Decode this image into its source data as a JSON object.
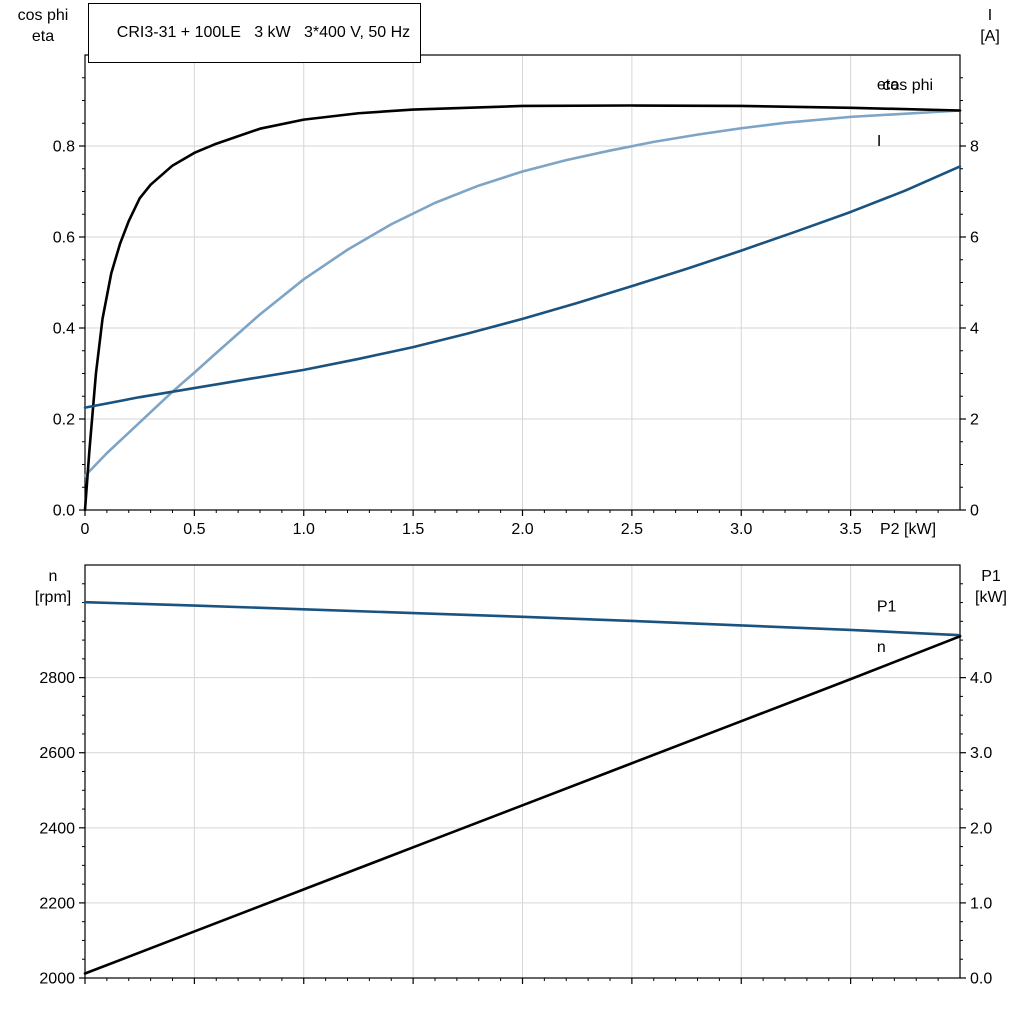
{
  "title": "CRI3-31 + 100LE   3 kW   3*400 V, 50 Hz",
  "colors": {
    "black": "#000000",
    "light_blue": "#7ea4c6",
    "dark_blue": "#1a5380",
    "grid": "#d6d6d6",
    "axis": "#000000"
  },
  "chart_data": [
    {
      "id": "top",
      "type": "line",
      "title": "CRI3-31 + 100LE   3 kW   3*400 V, 50 Hz",
      "x_axis": {
        "label": "P2 [kW]",
        "min": 0,
        "max": 4.0,
        "minor_step": 0.1,
        "major_ticks": [
          0,
          0.5,
          1.0,
          1.5,
          2.0,
          2.5,
          3.0,
          3.5
        ],
        "tick_labels": [
          "0",
          "0.5",
          "1.0",
          "1.5",
          "2.0",
          "2.5",
          "3.0",
          "3.5"
        ]
      },
      "y_left": {
        "label_lines": [
          "cos phi",
          "eta"
        ],
        "min": 0,
        "max": 1.0,
        "minor_step": 0.05,
        "major_ticks": [
          0.0,
          0.2,
          0.4,
          0.6,
          0.8
        ],
        "tick_labels": [
          "0.0",
          "0.2",
          "0.4",
          "0.6",
          "0.8"
        ]
      },
      "y_right": {
        "label_lines": [
          "I",
          "[A]"
        ],
        "min": 0,
        "max": 10,
        "minor_step": 0.5,
        "major_ticks": [
          0,
          2,
          4,
          6,
          8
        ],
        "tick_labels": [
          "0",
          "2",
          "4",
          "6",
          "8"
        ]
      },
      "grid": true,
      "series": [
        {
          "name": "cos phi",
          "slug": "cos-phi",
          "axis": "left",
          "color_key": "light_blue",
          "label_at": [
            3.645,
            0.923
          ],
          "x": [
            0,
            0.1,
            0.2,
            0.3,
            0.4,
            0.5,
            0.6,
            0.8,
            1.0,
            1.2,
            1.4,
            1.6,
            1.8,
            2.0,
            2.2,
            2.4,
            2.6,
            2.8,
            3.0,
            3.2,
            3.5,
            4.0
          ],
          "y": [
            0.075,
            0.125,
            0.17,
            0.215,
            0.26,
            0.302,
            0.345,
            0.43,
            0.507,
            0.572,
            0.628,
            0.675,
            0.713,
            0.744,
            0.769,
            0.79,
            0.809,
            0.825,
            0.839,
            0.851,
            0.864,
            0.878
          ]
        },
        {
          "name": "eta",
          "slug": "eta",
          "axis": "left",
          "color_key": "black",
          "label_at": [
            3.62,
            0.924
          ],
          "x": [
            0,
            0.02,
            0.05,
            0.08,
            0.12,
            0.16,
            0.2,
            0.25,
            0.3,
            0.4,
            0.5,
            0.6,
            0.8,
            1.0,
            1.25,
            1.5,
            2.0,
            2.5,
            3.0,
            3.5,
            4.0
          ],
          "y": [
            0,
            0.13,
            0.3,
            0.42,
            0.52,
            0.585,
            0.635,
            0.685,
            0.715,
            0.757,
            0.785,
            0.805,
            0.838,
            0.858,
            0.872,
            0.88,
            0.888,
            0.889,
            0.888,
            0.884,
            0.878
          ]
        },
        {
          "name": "I",
          "slug": "i",
          "axis": "right",
          "color_key": "dark_blue",
          "label_at": [
            3.62,
            8.0
          ],
          "x": [
            0,
            0.25,
            0.5,
            0.75,
            1.0,
            1.25,
            1.5,
            1.75,
            2.0,
            2.25,
            2.5,
            2.75,
            3.0,
            3.25,
            3.5,
            3.75,
            4.0
          ],
          "y": [
            2.25,
            2.48,
            2.68,
            2.88,
            3.08,
            3.32,
            3.58,
            3.88,
            4.2,
            4.55,
            4.92,
            5.3,
            5.7,
            6.12,
            6.55,
            7.02,
            7.55
          ]
        }
      ]
    },
    {
      "id": "bottom",
      "type": "line",
      "title": "",
      "x_axis": {
        "label": "",
        "min": 0,
        "max": 4.0,
        "minor_step": 0.1,
        "major_ticks": [
          0,
          0.5,
          1.0,
          1.5,
          2.0,
          2.5,
          3.0,
          3.5
        ],
        "tick_labels": []
      },
      "y_left": {
        "label_lines": [
          "n",
          "[rpm]"
        ],
        "min": 2000,
        "max": 3100,
        "minor_step": 50,
        "major_ticks": [
          2000,
          2200,
          2400,
          2600,
          2800
        ],
        "tick_labels": [
          "2000",
          "2200",
          "2400",
          "2600",
          "2800"
        ]
      },
      "y_right": {
        "label_lines": [
          "P1",
          "[kW]"
        ],
        "min": 0,
        "max": 5.5,
        "minor_step": 0.25,
        "major_ticks": [
          0.0,
          1.0,
          2.0,
          3.0,
          4.0
        ],
        "tick_labels": [
          "0.0",
          "1.0",
          "2.0",
          "3.0",
          "4.0"
        ]
      },
      "grid": true,
      "series": [
        {
          "name": "n",
          "slug": "n",
          "axis": "left",
          "color_key": "dark_blue",
          "label_at": [
            3.62,
            2868
          ],
          "x": [
            0,
            0.5,
            1.0,
            1.5,
            2.0,
            2.5,
            3.0,
            3.5,
            4.0
          ],
          "y": [
            3001,
            2992,
            2982,
            2972,
            2962,
            2951,
            2939,
            2927,
            2913
          ]
        },
        {
          "name": "P1",
          "slug": "p1",
          "axis": "right",
          "color_key": "black",
          "label_at": [
            3.62,
            4.88
          ],
          "x": [
            0,
            0.5,
            1.0,
            1.5,
            2.0,
            2.5,
            3.0,
            3.5,
            4.0
          ],
          "y": [
            0.06,
            0.62,
            1.18,
            1.74,
            2.3,
            2.86,
            3.42,
            3.98,
            4.55
          ]
        }
      ]
    }
  ]
}
